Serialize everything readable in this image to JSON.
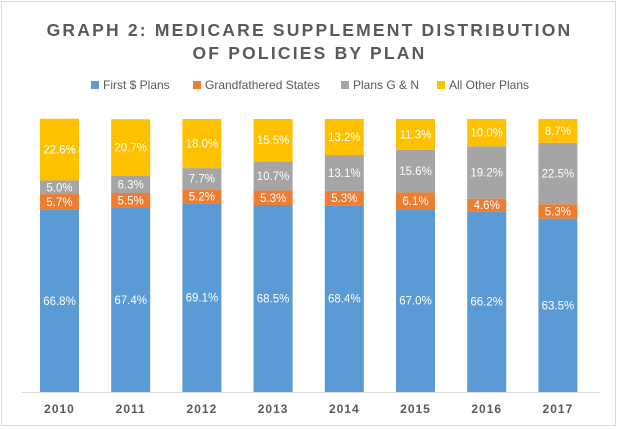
{
  "chart_data": {
    "type": "bar",
    "stacked": true,
    "normalized_percent": true,
    "title_line1": "GRAPH 2: MEDICARE SUPPLEMENT DISTRIBUTION",
    "title_line2": "OF POLICIES BY PLAN",
    "categories": [
      "2010",
      "2011",
      "2012",
      "2013",
      "2014",
      "2015",
      "2016",
      "2017"
    ],
    "series": [
      {
        "name": "First $ Plans",
        "color": "#5b9bd5",
        "values": [
          66.8,
          67.4,
          69.1,
          68.5,
          68.4,
          67.0,
          66.2,
          63.5
        ]
      },
      {
        "name": "Grandfathered States",
        "color": "#ed7d31",
        "values": [
          5.7,
          5.5,
          5.2,
          5.3,
          5.3,
          6.1,
          4.6,
          5.3
        ]
      },
      {
        "name": "Plans G & N",
        "color": "#a5a5a5",
        "values": [
          5.0,
          6.3,
          7.7,
          10.7,
          13.1,
          15.6,
          19.2,
          22.5
        ]
      },
      {
        "name": "All Other Plans",
        "color": "#ffc000",
        "values": [
          22.6,
          20.7,
          18.0,
          15.5,
          13.2,
          11.3,
          10.0,
          8.7
        ]
      }
    ],
    "ylim": [
      0,
      100
    ],
    "legend_position": "top",
    "grid": false,
    "data_labels": true
  }
}
